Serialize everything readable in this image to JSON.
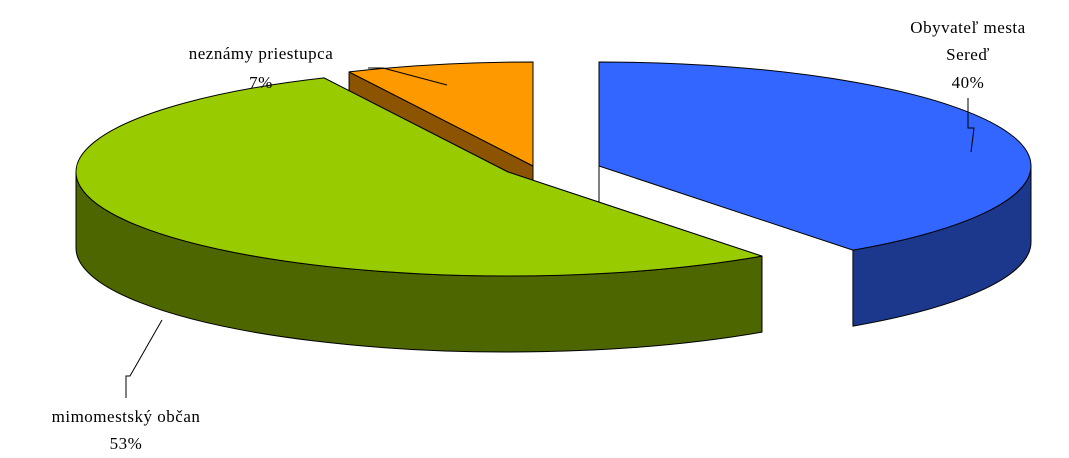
{
  "chart_data": {
    "type": "pie",
    "style": "3d-exploded",
    "title": "",
    "slices": [
      {
        "name": "Obyvateľ mesta Sereď",
        "label_lines": [
          "Obyvateľ mesta",
          "Sereď"
        ],
        "percent_label": "40%",
        "value": 40,
        "color": "#3366FF"
      },
      {
        "name": "mimomestský občan",
        "label_lines": [
          "mimomestský občan"
        ],
        "percent_label": "53%",
        "value": 53,
        "color": "#99CC00"
      },
      {
        "name": "neznámy priestupca",
        "label_lines": [
          "neznámy priestupca"
        ],
        "percent_label": "7%",
        "value": 7,
        "color": "#FF9900"
      }
    ],
    "legend": "none",
    "data_labels": "outside-with-leader-lines"
  }
}
